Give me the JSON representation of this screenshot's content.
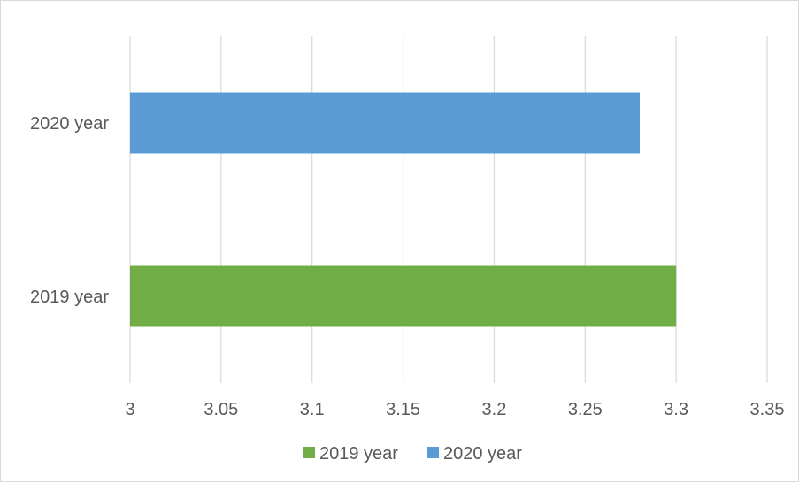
{
  "chart_data": {
    "type": "bar",
    "orientation": "horizontal",
    "categories": [
      "2019 year",
      "2020 year"
    ],
    "series": [
      {
        "name": "2019 year",
        "color": "#70AD47",
        "values": [
          3.3,
          null
        ]
      },
      {
        "name": "2020 year",
        "color": "#5B9BD5",
        "values": [
          null,
          3.28
        ]
      }
    ],
    "xlim": [
      3,
      3.35
    ],
    "xticks": [
      "3",
      "3.05",
      "3.1",
      "3.15",
      "3.2",
      "3.25",
      "3.3",
      "3.35"
    ],
    "grid": true,
    "legend": "bottom",
    "title": "",
    "xlabel": "",
    "ylabel": ""
  }
}
